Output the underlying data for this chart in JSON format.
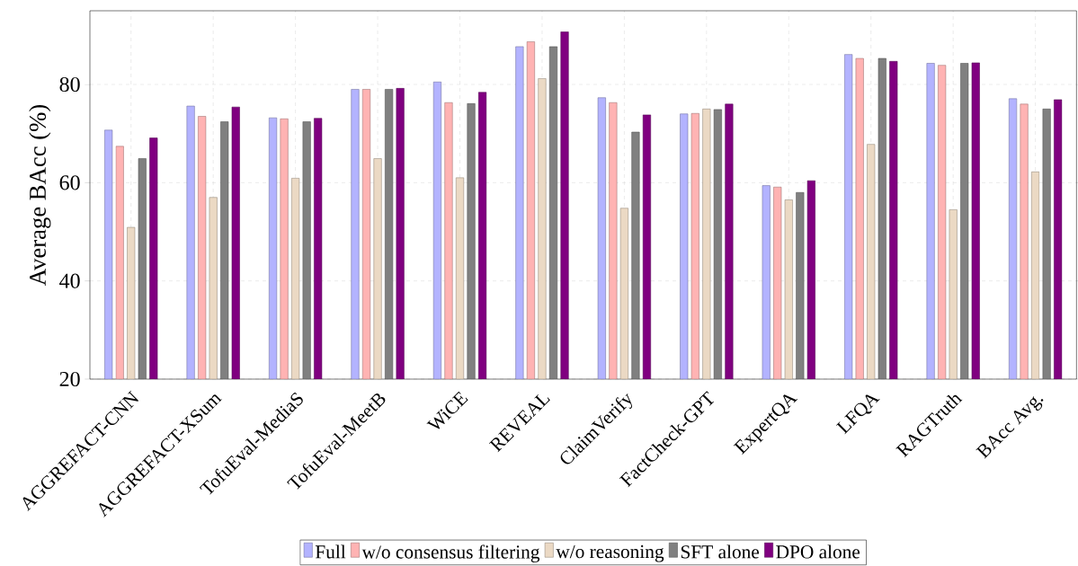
{
  "chart_data": {
    "type": "bar",
    "ylabel": "Average BAcc (%)",
    "categories": [
      "AGGREFACT-CNN",
      "AGGREFACT-XSum",
      "TofuEval-MediaS",
      "TofuEval-MeetB",
      "WiCE",
      "REVEAL",
      "ClaimVerify",
      "FactCheck-GPT",
      "ExpertQA",
      "LFQA",
      "RAGTruth",
      "BAcc Avg."
    ],
    "series": [
      {
        "name": "Full",
        "color": "#b3b3ff",
        "values": [
          70.7,
          75.6,
          73.2,
          79.0,
          80.5,
          87.7,
          77.3,
          74.0,
          59.4,
          86.1,
          84.3,
          77.1
        ]
      },
      {
        "name": "w/o consensus filtering",
        "color": "#ffb3b3",
        "values": [
          67.4,
          73.5,
          73.0,
          79.0,
          76.3,
          88.7,
          76.3,
          74.1,
          59.1,
          85.3,
          83.9,
          76.0
        ]
      },
      {
        "name": "w/o reasoning",
        "color": "#ebd9c4",
        "values": [
          50.9,
          57.0,
          60.9,
          64.9,
          61.0,
          81.2,
          54.8,
          75.0,
          56.5,
          67.8,
          54.5,
          62.2
        ]
      },
      {
        "name": "SFT alone",
        "color": "#808080",
        "values": [
          64.9,
          72.4,
          72.4,
          79.0,
          76.1,
          87.7,
          70.3,
          74.9,
          58.0,
          85.3,
          84.3,
          75.0
        ]
      },
      {
        "name": "DPO alone",
        "color": "#800080",
        "values": [
          69.1,
          75.4,
          73.1,
          79.2,
          78.4,
          90.7,
          73.8,
          76.0,
          60.4,
          84.7,
          84.4,
          76.9
        ]
      }
    ],
    "ylim": [
      20,
      95
    ],
    "yticks": [
      20,
      40,
      60,
      80
    ],
    "grid": true,
    "legend": "bottom"
  }
}
